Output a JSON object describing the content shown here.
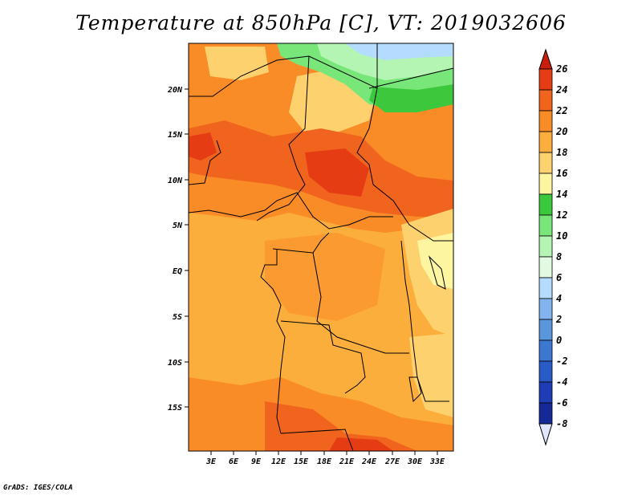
{
  "title": "Temperature at 850hPa [C], VT: 2019032606",
  "credit": "GrADS: IGES/COLA",
  "map": {
    "lat_labels": [
      "20N",
      "15N",
      "10N",
      "5N",
      "EQ",
      "5S",
      "10S",
      "15S"
    ],
    "lon_labels": [
      "3E",
      "6E",
      "9E",
      "12E",
      "15E",
      "18E",
      "21E",
      "24E",
      "27E",
      "30E",
      "33E"
    ],
    "lon_range": [
      0,
      35
    ],
    "lat_range": [
      -20,
      24
    ]
  },
  "colorbar": {
    "levels": [
      26,
      24,
      22,
      20,
      18,
      16,
      14,
      12,
      10,
      8,
      6,
      4,
      2,
      0,
      -2,
      -4,
      -6,
      -8
    ],
    "colors": {
      "above_26": "#c81e0f",
      "24_26": "#e63c14",
      "22_24": "#f0641e",
      "20_22": "#fa8c28",
      "18_20": "#fcae3c",
      "16_18": "#fdd26e",
      "14_16": "#fef5a0",
      "12_14": "#3cc83c",
      "10_12": "#78e678",
      "8_10": "#b4f5b4",
      "6_8": "#e1fae1",
      "4_6": "#b4dcff",
      "2_4": "#82b4f0",
      "0_2": "#5a96dc",
      "m2_0": "#3c78d2",
      "m4_m2": "#285ac8",
      "m6_m4": "#1e3cb4",
      "m8_m6": "#142896",
      "below_m8": "#0a146e",
      "below_tip": "#e1e6fa"
    }
  }
}
